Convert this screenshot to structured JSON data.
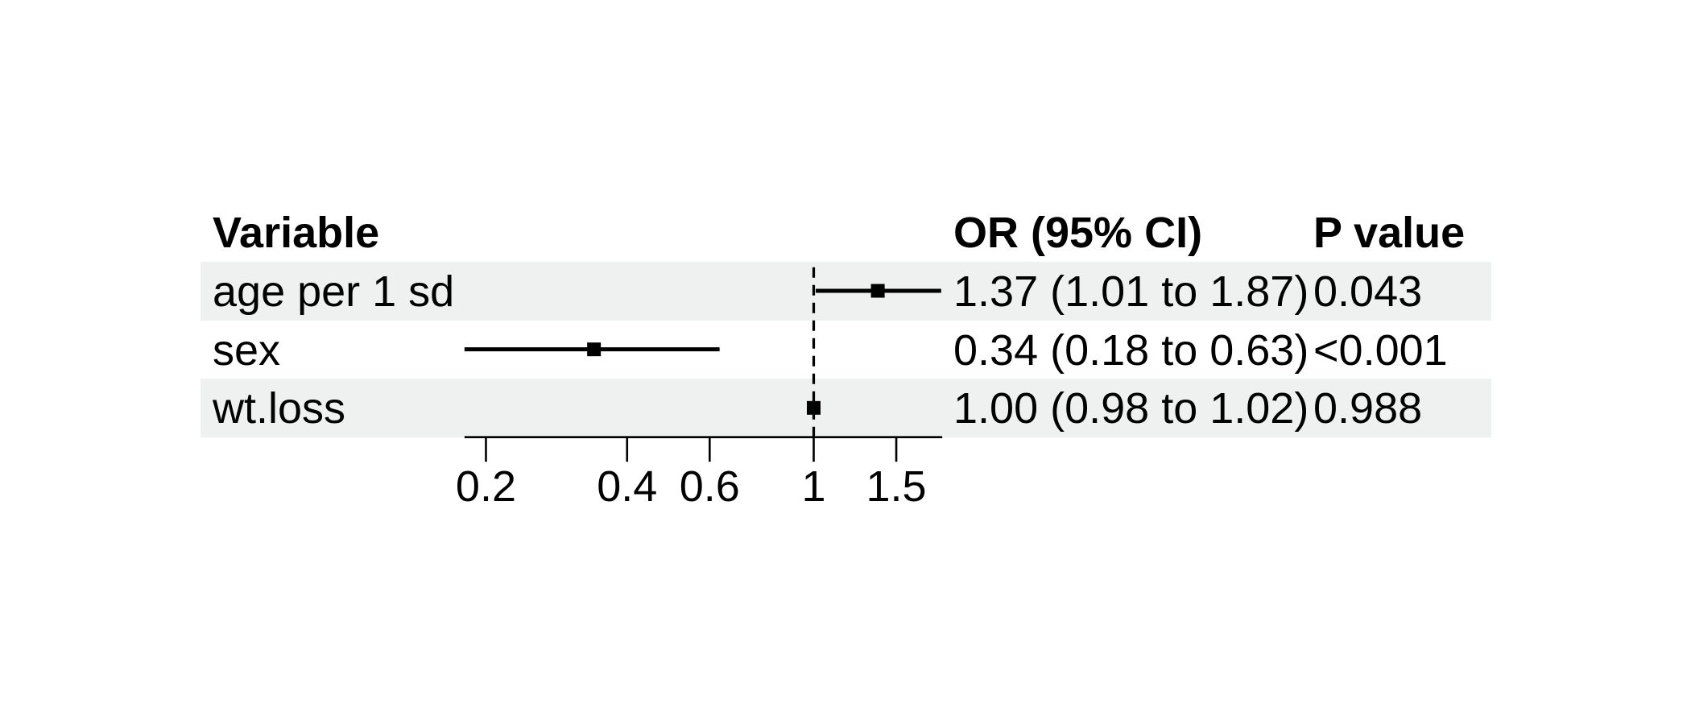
{
  "figure": {
    "background_color": "#ffffff",
    "row_stripe_color": "#eef1f0",
    "row_plain_color": "#ffffff",
    "text_color": "#000000",
    "line_color": "#000000"
  },
  "table": {
    "headers": {
      "variable": "Variable",
      "or_ci": "OR (95% CI)",
      "p_value": "P value"
    },
    "rows": [
      {
        "variable": "age per 1 sd",
        "or_ci": "1.37 (1.01 to 1.87)",
        "p_value": "0.043",
        "striped": true
      },
      {
        "variable": "sex",
        "or_ci": "0.34 (0.18 to 0.63)",
        "p_value": "<0.001",
        "striped": false
      },
      {
        "variable": "wt.loss",
        "or_ci": "1.00 (0.98 to 1.02)",
        "p_value": "0.988",
        "striped": true
      }
    ]
  },
  "chart_data": {
    "type": "scatter",
    "variant": "forest-plot",
    "title": "",
    "xlabel": "",
    "ylabel": "",
    "x_scale": "log",
    "x_ticks": [
      "0.2",
      "0.4",
      "0.6",
      "1",
      "1.5"
    ],
    "x_tick_values": [
      0.2,
      0.4,
      0.6,
      1,
      1.5
    ],
    "x_range": [
      0.18,
      1.88
    ],
    "reference_line": 1,
    "grid": false,
    "legend_position": "none",
    "series": [
      {
        "name": "age per 1 sd",
        "estimate": 1.37,
        "ci_low": 1.01,
        "ci_high": 1.87
      },
      {
        "name": "sex",
        "estimate": 0.34,
        "ci_low": 0.18,
        "ci_high": 0.63
      },
      {
        "name": "wt.loss",
        "estimate": 1.0,
        "ci_low": 0.98,
        "ci_high": 1.02
      }
    ]
  }
}
